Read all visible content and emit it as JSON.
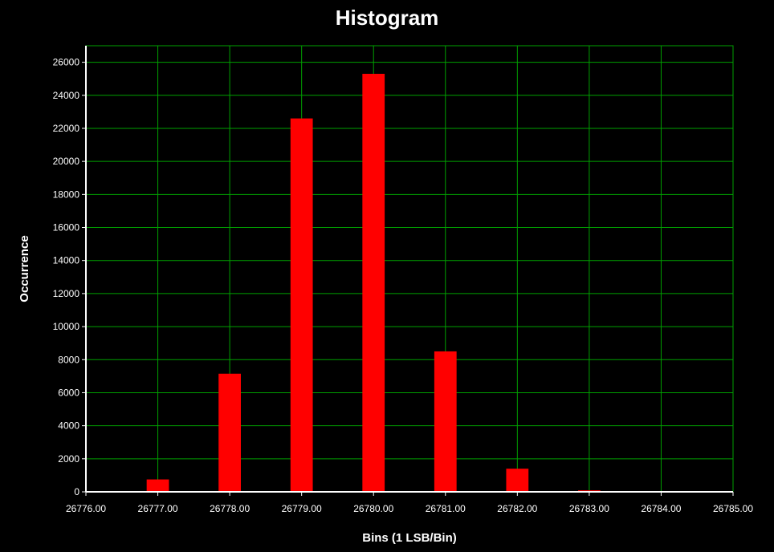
{
  "chart_data": {
    "type": "bar",
    "title": "Histogram",
    "xlabel": "Bins (1 LSB/Bin)",
    "ylabel": "Occurrence",
    "xlim": [
      26776,
      26785
    ],
    "ylim": [
      0,
      27000
    ],
    "x_ticks": [
      "26776.00",
      "26777.00",
      "26778.00",
      "26779.00",
      "26780.00",
      "26781.00",
      "26782.00",
      "26783.00",
      "26784.00",
      "26785.00"
    ],
    "y_ticks": [
      "0",
      "2000",
      "4000",
      "6000",
      "8000",
      "10000",
      "12000",
      "14000",
      "16000",
      "18000",
      "20000",
      "22000",
      "24000",
      "26000"
    ],
    "categories": [
      26776,
      26777,
      26778,
      26779,
      26780,
      26781,
      26782,
      26783,
      26784,
      26785
    ],
    "values": [
      30,
      750,
      7150,
      22600,
      25300,
      8500,
      1400,
      90,
      30,
      30
    ],
    "grid": true,
    "colors": {
      "background": "#000000",
      "bar": "#ff0000",
      "grid": "#00a000",
      "axis": "#ffffff",
      "text": "#ffffff"
    }
  }
}
